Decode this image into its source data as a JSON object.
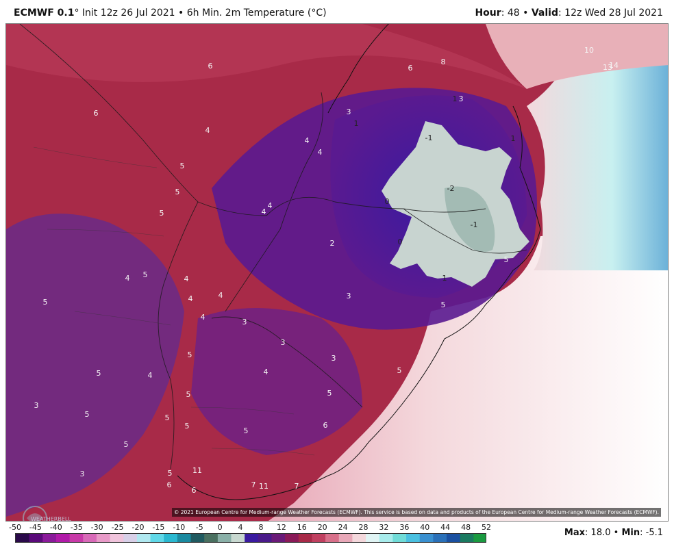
{
  "header": {
    "model": "ECMWF 0.1",
    "degree_sign": "°",
    "init": "Init 12z 26 Jul 2021",
    "bullet": "•",
    "product": "6h Min. 2m Temperature (°C)",
    "hour_label": "Hour",
    "hour_value": "48",
    "valid_label": "Valid",
    "valid_value": "12z Wed 28 Jul 2021"
  },
  "map": {
    "copyright": "© 2021 European Centre for Medium-range Weather Forecasts (ECMWF). This service is based on data and products of the European Centre for Medium-range Weather Forecasts (ECMWF).",
    "logo_text": "WEATHERBELL",
    "labels": [
      "-1",
      "-2",
      "-1",
      "0",
      "0",
      "1",
      "1",
      "1",
      "1",
      "2",
      "3",
      "3",
      "3",
      "3",
      "3",
      "3",
      "3",
      "3",
      "4",
      "4",
      "4",
      "4",
      "4",
      "4",
      "4",
      "4",
      "4",
      "4",
      "4",
      "4",
      "5",
      "5",
      "5",
      "5",
      "5",
      "5",
      "5",
      "5",
      "5",
      "5",
      "5",
      "5",
      "5",
      "5",
      "5",
      "5",
      "5",
      "5",
      "6",
      "6",
      "6",
      "6",
      "6",
      "6",
      "7",
      "7",
      "8",
      "11",
      "11",
      "13",
      "14",
      "10"
    ]
  },
  "legend": {
    "ticks": [
      "-50",
      "-45",
      "-40",
      "-35",
      "-30",
      "-25",
      "-20",
      "-15",
      "-10",
      "-5",
      "0",
      "4",
      "8",
      "12",
      "16",
      "20",
      "24",
      "28",
      "32",
      "36",
      "40",
      "44",
      "48",
      "52"
    ],
    "colors": [
      "#2a0a4a",
      "#5a0a7a",
      "#8a1a9a",
      "#b01aa8",
      "#c83aa8",
      "#d86ab8",
      "#e89ac8",
      "#f0c4dc",
      "#d8d0e8",
      "#b0e8f0",
      "#60d8e8",
      "#2ab8d0",
      "#1a8aa0",
      "#205a60",
      "#4a7060",
      "#8ab0a8",
      "#c8d8d0",
      "#3a1aa0",
      "#4a1a8a",
      "#6a1a78",
      "#8a1a58",
      "#a82a48",
      "#c04060",
      "#d8708a",
      "#e8a8b8",
      "#f4d8dc",
      "#e0f4f4",
      "#a8ecec",
      "#70dcd8",
      "#4ac0e0",
      "#3a90d0",
      "#2a70b8",
      "#1a50a0",
      "#1a7a60",
      "#1a9a40"
    ],
    "max_label": "Max",
    "max_value": "18.0",
    "min_label": "Min",
    "min_value": "-5.1"
  }
}
